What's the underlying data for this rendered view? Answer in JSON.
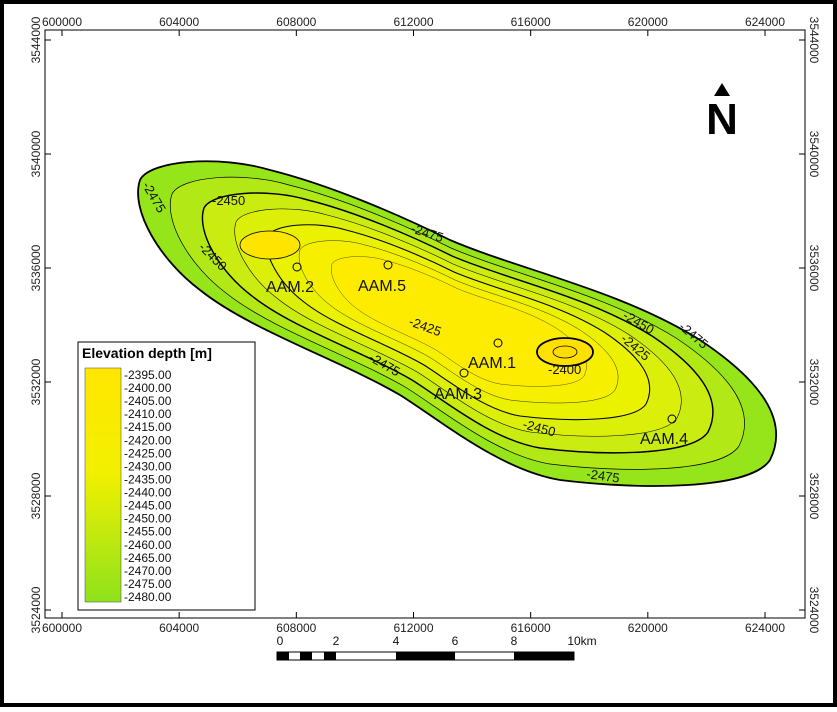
{
  "map": {
    "xlim": [
      599420,
      625366
    ],
    "ylim": [
      3523719,
      3544351
    ],
    "xticks": [
      600000,
      604000,
      608000,
      612000,
      616000,
      620000,
      624000
    ],
    "yticks": [
      3524000,
      3528000,
      3532000,
      3536000,
      3540000,
      3544000
    ]
  },
  "north": "N",
  "legend": {
    "title": "Elevation depth [m]",
    "entries": [
      "-2395.00",
      "-2400.00",
      "-2405.00",
      "-2410.00",
      "-2415.00",
      "-2420.00",
      "-2425.00",
      "-2430.00",
      "-2435.00",
      "-2440.00",
      "-2445.00",
      "-2450.00",
      "-2455.00",
      "-2460.00",
      "-2465.00",
      "-2470.00",
      "-2475.00",
      "-2480.00"
    ]
  },
  "wells": [
    "AAM.2",
    "AAM.5",
    "AAM.1",
    "AAM.3",
    "AAM.4"
  ],
  "contour_labels": [
    "-2475",
    "-2450",
    "-2450",
    "-2475",
    "-2425",
    "-2475",
    "-2450",
    "-2425",
    "-2475",
    "-2400",
    "-2450",
    "-2475"
  ],
  "scale_bar": [
    "0",
    "2",
    "4",
    "6",
    "8",
    "10km"
  ]
}
